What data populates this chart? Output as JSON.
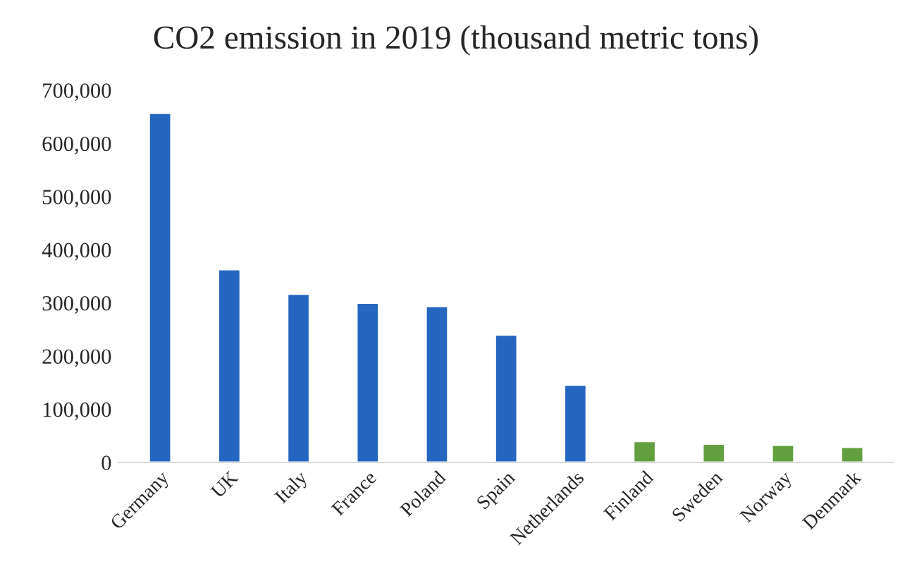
{
  "chart_data": {
    "type": "bar",
    "title": "CO2 emission in 2019 (thousand metric tons)",
    "categories": [
      "Germany",
      "UK",
      "Italy",
      "France",
      "Poland",
      "Spain",
      "Netherlands",
      "Finland",
      "Sweden",
      "Norway",
      "Denmark"
    ],
    "values": [
      657000,
      363000,
      317000,
      300000,
      294000,
      240000,
      146000,
      40000,
      35000,
      33000,
      29000
    ],
    "colors": [
      "#2566c0",
      "#2566c0",
      "#2566c0",
      "#2566c0",
      "#2566c0",
      "#2566c0",
      "#2566c0",
      "#62a03f",
      "#62a03f",
      "#62a03f",
      "#62a03f"
    ],
    "ylim": [
      0,
      700000
    ],
    "yticks": [
      0,
      {
        "value": 100000,
        "label": "100,000"
      },
      {
        "value": 200000,
        "label": "200,000"
      },
      {
        "value": 300000,
        "label": "300,000"
      },
      {
        "value": 400000,
        "label": "400,000"
      },
      {
        "value": 500000,
        "label": "500,000"
      },
      {
        "value": 600000,
        "label": "600,000"
      },
      {
        "value": 700000,
        "label": "700,000"
      }
    ],
    "grid": false
  }
}
